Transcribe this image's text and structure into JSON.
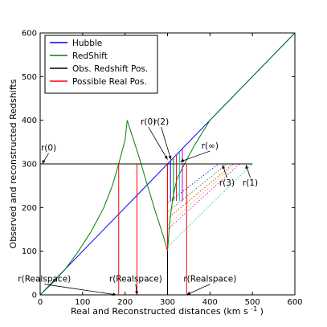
{
  "chart_data": {
    "type": "line",
    "xlabel": "Real and Reconstructed distances (km s",
    "xlabel_sup": "-1",
    "xlabel_end": ")",
    "ylabel": "Observed and reconstructed Redshifts",
    "xlim": [
      0,
      600
    ],
    "ylim": [
      0,
      600
    ],
    "xticks": [
      "0",
      "100",
      "200",
      "300",
      "400",
      "500",
      "600"
    ],
    "yticks": [
      "0",
      "100",
      "200",
      "300",
      "400",
      "500",
      "600"
    ],
    "legend_position": "top-left",
    "legend": [
      {
        "label": "Hubble",
        "color": "#0000ff"
      },
      {
        "label": "RedShift",
        "color": "#008000"
      },
      {
        "label": "Obs. Redshift Pos.",
        "color": "#000000"
      },
      {
        "label": "Possible Real Pos.",
        "color": "#ff0000"
      }
    ],
    "series": [
      {
        "key": "hubble",
        "color": "#0000ff",
        "points": [
          [
            0,
            0
          ],
          [
            600,
            600
          ]
        ]
      },
      {
        "key": "redshift",
        "color": "#008000",
        "points": [
          [
            0,
            0
          ],
          [
            30,
            28
          ],
          [
            60,
            60
          ],
          [
            90,
            100
          ],
          [
            120,
            145
          ],
          [
            150,
            200
          ],
          [
            170,
            250
          ],
          [
            185,
            300
          ],
          [
            200,
            355
          ],
          [
            205,
            400
          ],
          [
            230,
            325
          ],
          [
            250,
            260
          ],
          [
            270,
            195
          ],
          [
            290,
            135
          ],
          [
            300,
            100
          ],
          [
            305,
            165
          ],
          [
            312,
            220
          ],
          [
            322,
            265
          ],
          [
            340,
            300
          ],
          [
            365,
            345
          ],
          [
            400,
            400
          ],
          [
            500,
            500
          ],
          [
            600,
            600
          ]
        ]
      },
      {
        "key": "obs",
        "color": "#000000",
        "points": [
          [
            0,
            300
          ],
          [
            500,
            300
          ]
        ]
      },
      {
        "key": "obs_vertical",
        "color": "#000000",
        "points": [
          [
            300,
            0
          ],
          [
            300,
            300
          ]
        ]
      }
    ],
    "real_positions_x": [
      185,
      228,
      345
    ],
    "real_positions_y": 300,
    "marker_lines": [
      {
        "x": 300,
        "y1": 100,
        "y2": 300,
        "color": "#ff0000"
      },
      {
        "x": 307,
        "y1": 215,
        "y2": 307,
        "color": "#0000ff"
      },
      {
        "x": 314,
        "y1": 215,
        "y2": 314,
        "color": "#008000"
      },
      {
        "x": 321,
        "y1": 215,
        "y2": 321,
        "color": "#ff0000"
      },
      {
        "x": 328,
        "y1": 215,
        "y2": 328,
        "color": "#00bfbf"
      },
      {
        "x": 335,
        "y1": 215,
        "y2": 335,
        "color": "#bf00bf"
      }
    ],
    "dotted_lines": [
      {
        "color": "#0000ff",
        "points": [
          [
            300,
            210
          ],
          [
            420,
            300
          ]
        ]
      },
      {
        "color": "#008000",
        "points": [
          [
            300,
            190
          ],
          [
            440,
            300
          ]
        ]
      },
      {
        "color": "#ff0000",
        "points": [
          [
            300,
            175
          ],
          [
            455,
            300
          ]
        ]
      },
      {
        "color": "#00bfbf",
        "points": [
          [
            300,
            110
          ],
          [
            500,
            300
          ]
        ]
      },
      {
        "color": "#bf00bf",
        "points": [
          [
            300,
            150
          ],
          [
            470,
            300
          ]
        ]
      },
      {
        "color": "#bfbf00",
        "points": [
          [
            300,
            160
          ],
          [
            460,
            300
          ]
        ]
      }
    ],
    "annotations": [
      {
        "text": "r(0)",
        "x": 20,
        "y": 330,
        "ax": 5,
        "ay": 300
      },
      {
        "text": "r(0)",
        "x": 255,
        "y": 390,
        "ax": 300,
        "ay": 310
      },
      {
        "text": "r(2)",
        "x": 285,
        "y": 390,
        "ax": 308,
        "ay": 310
      },
      {
        "text": "r(∞)",
        "x": 400,
        "y": 335,
        "ax": 330,
        "ay": 305
      },
      {
        "text": "r(3)",
        "x": 440,
        "y": 250,
        "ax": 430,
        "ay": 298
      },
      {
        "text": "r(1)",
        "x": 495,
        "y": 250,
        "ax": 485,
        "ay": 298
      },
      {
        "text": "r(Realspace)",
        "x": 10,
        "y": 30,
        "ax": 180,
        "ay": 0
      },
      {
        "text": "r(Realspace)",
        "x": 225,
        "y": 30,
        "ax": 228,
        "ay": 0
      },
      {
        "text": "r(Realspace)",
        "x": 400,
        "y": 30,
        "ax": 345,
        "ay": 0
      }
    ]
  }
}
